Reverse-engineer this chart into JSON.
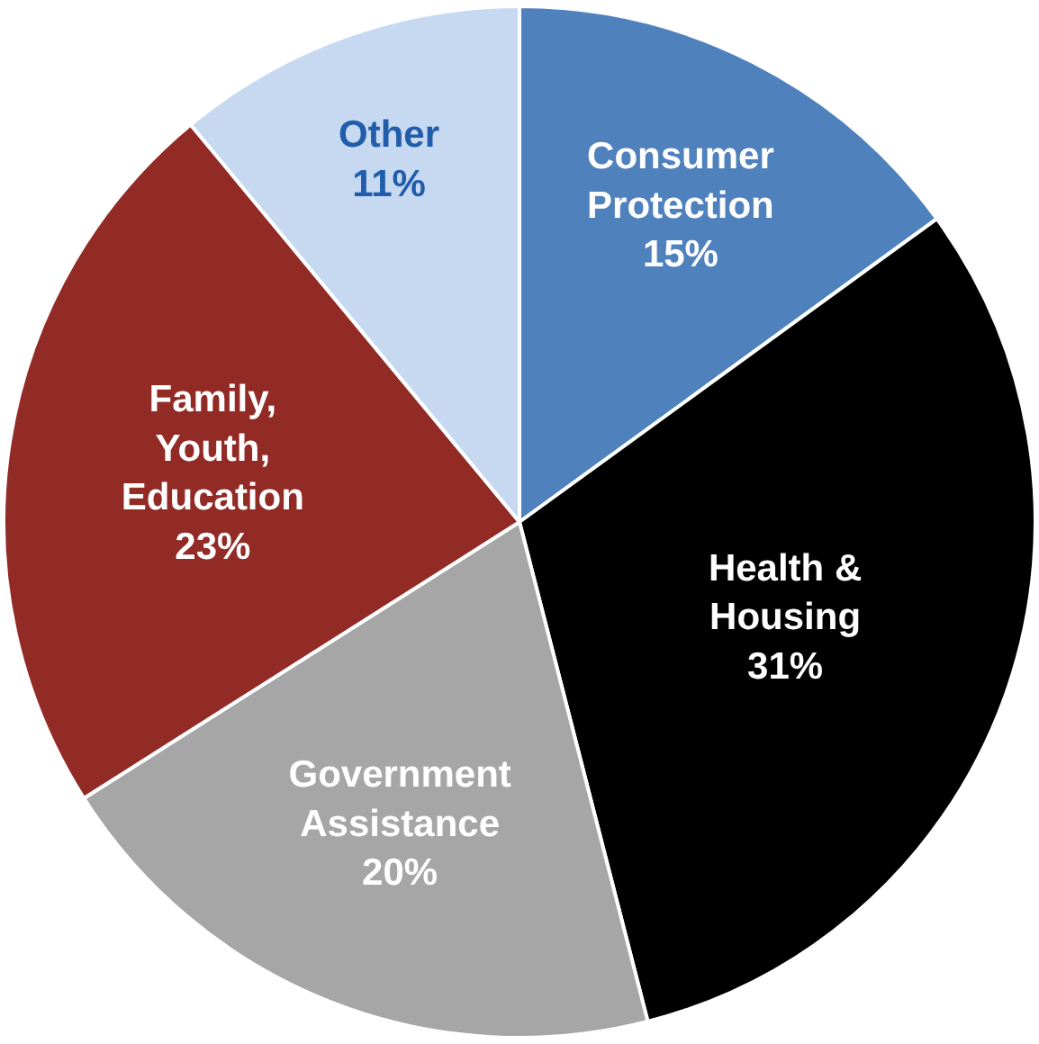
{
  "chart_data": {
    "type": "pie",
    "categories": [
      "Consumer Protection",
      "Health & Housing",
      "Government Assistance",
      "Family, Youth, Education",
      "Other"
    ],
    "values": [
      15,
      31,
      20,
      23,
      11
    ],
    "value_labels": [
      "15%",
      "31%",
      "20%",
      "23%",
      "11%"
    ],
    "colors": [
      "#4f81bd",
      "#000000",
      "#a6a6a6",
      "#922b26",
      "#c6d9f1"
    ],
    "legend": false
  }
}
